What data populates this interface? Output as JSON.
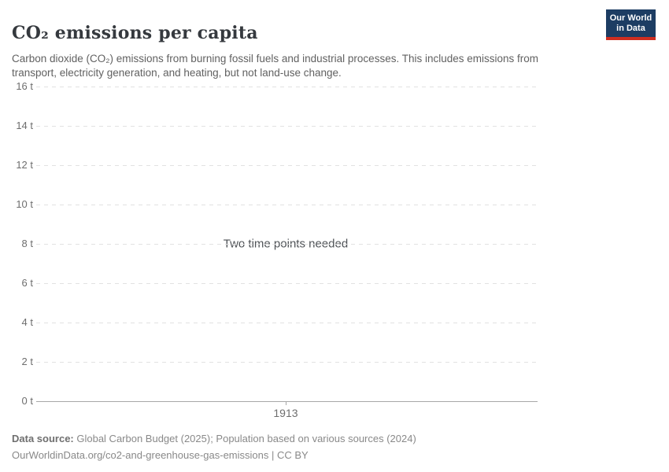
{
  "header": {
    "title": "CO₂ emissions per capita",
    "subtitle": "Carbon dioxide (CO₂) emissions from burning fossil fuels and industrial processes. This includes emissions from transport, electricity generation, and heating, but not land-use change.",
    "logo": {
      "line1": "Our World",
      "line2": "in Data",
      "bg_color": "#1d3d63",
      "bar_color": "#cf2e20"
    }
  },
  "chart_data": {
    "type": "line",
    "title": "CO₂ emissions per capita",
    "series": [],
    "note": "Two time points needed",
    "unit": "t",
    "ylim": [
      0,
      16
    ],
    "grid": "horizontal-dashed",
    "legend_position": "none",
    "y_ticks": [
      {
        "v": 0,
        "label": "0 t"
      },
      {
        "v": 2,
        "label": "2 t"
      },
      {
        "v": 4,
        "label": "4 t"
      },
      {
        "v": 6,
        "label": "6 t"
      },
      {
        "v": 8,
        "label": "8 t"
      },
      {
        "v": 10,
        "label": "10 t"
      },
      {
        "v": 12,
        "label": "12 t"
      },
      {
        "v": 14,
        "label": "14 t"
      },
      {
        "v": 16,
        "label": "16 t"
      }
    ],
    "x_ticks": [
      {
        "label": "1913",
        "frac": 0.4976
      }
    ]
  },
  "footer": {
    "source_label": "Data source:",
    "source_text": " Global Carbon Budget (2025); Population based on various sources (2024)",
    "url_line": "OurWorldinData.org/co2-and-greenhouse-gas-emissions | CC BY"
  },
  "colors": {
    "title_text": "#35393e",
    "subtitle_text": "#616161",
    "gridline": "#e2e2e2",
    "axis_line": "#a8a8a8",
    "tick_text": "#6e6e6e",
    "footer_text": "#898989",
    "logo_bg": "#1d3d63",
    "logo_bar": "#cf2e20"
  }
}
